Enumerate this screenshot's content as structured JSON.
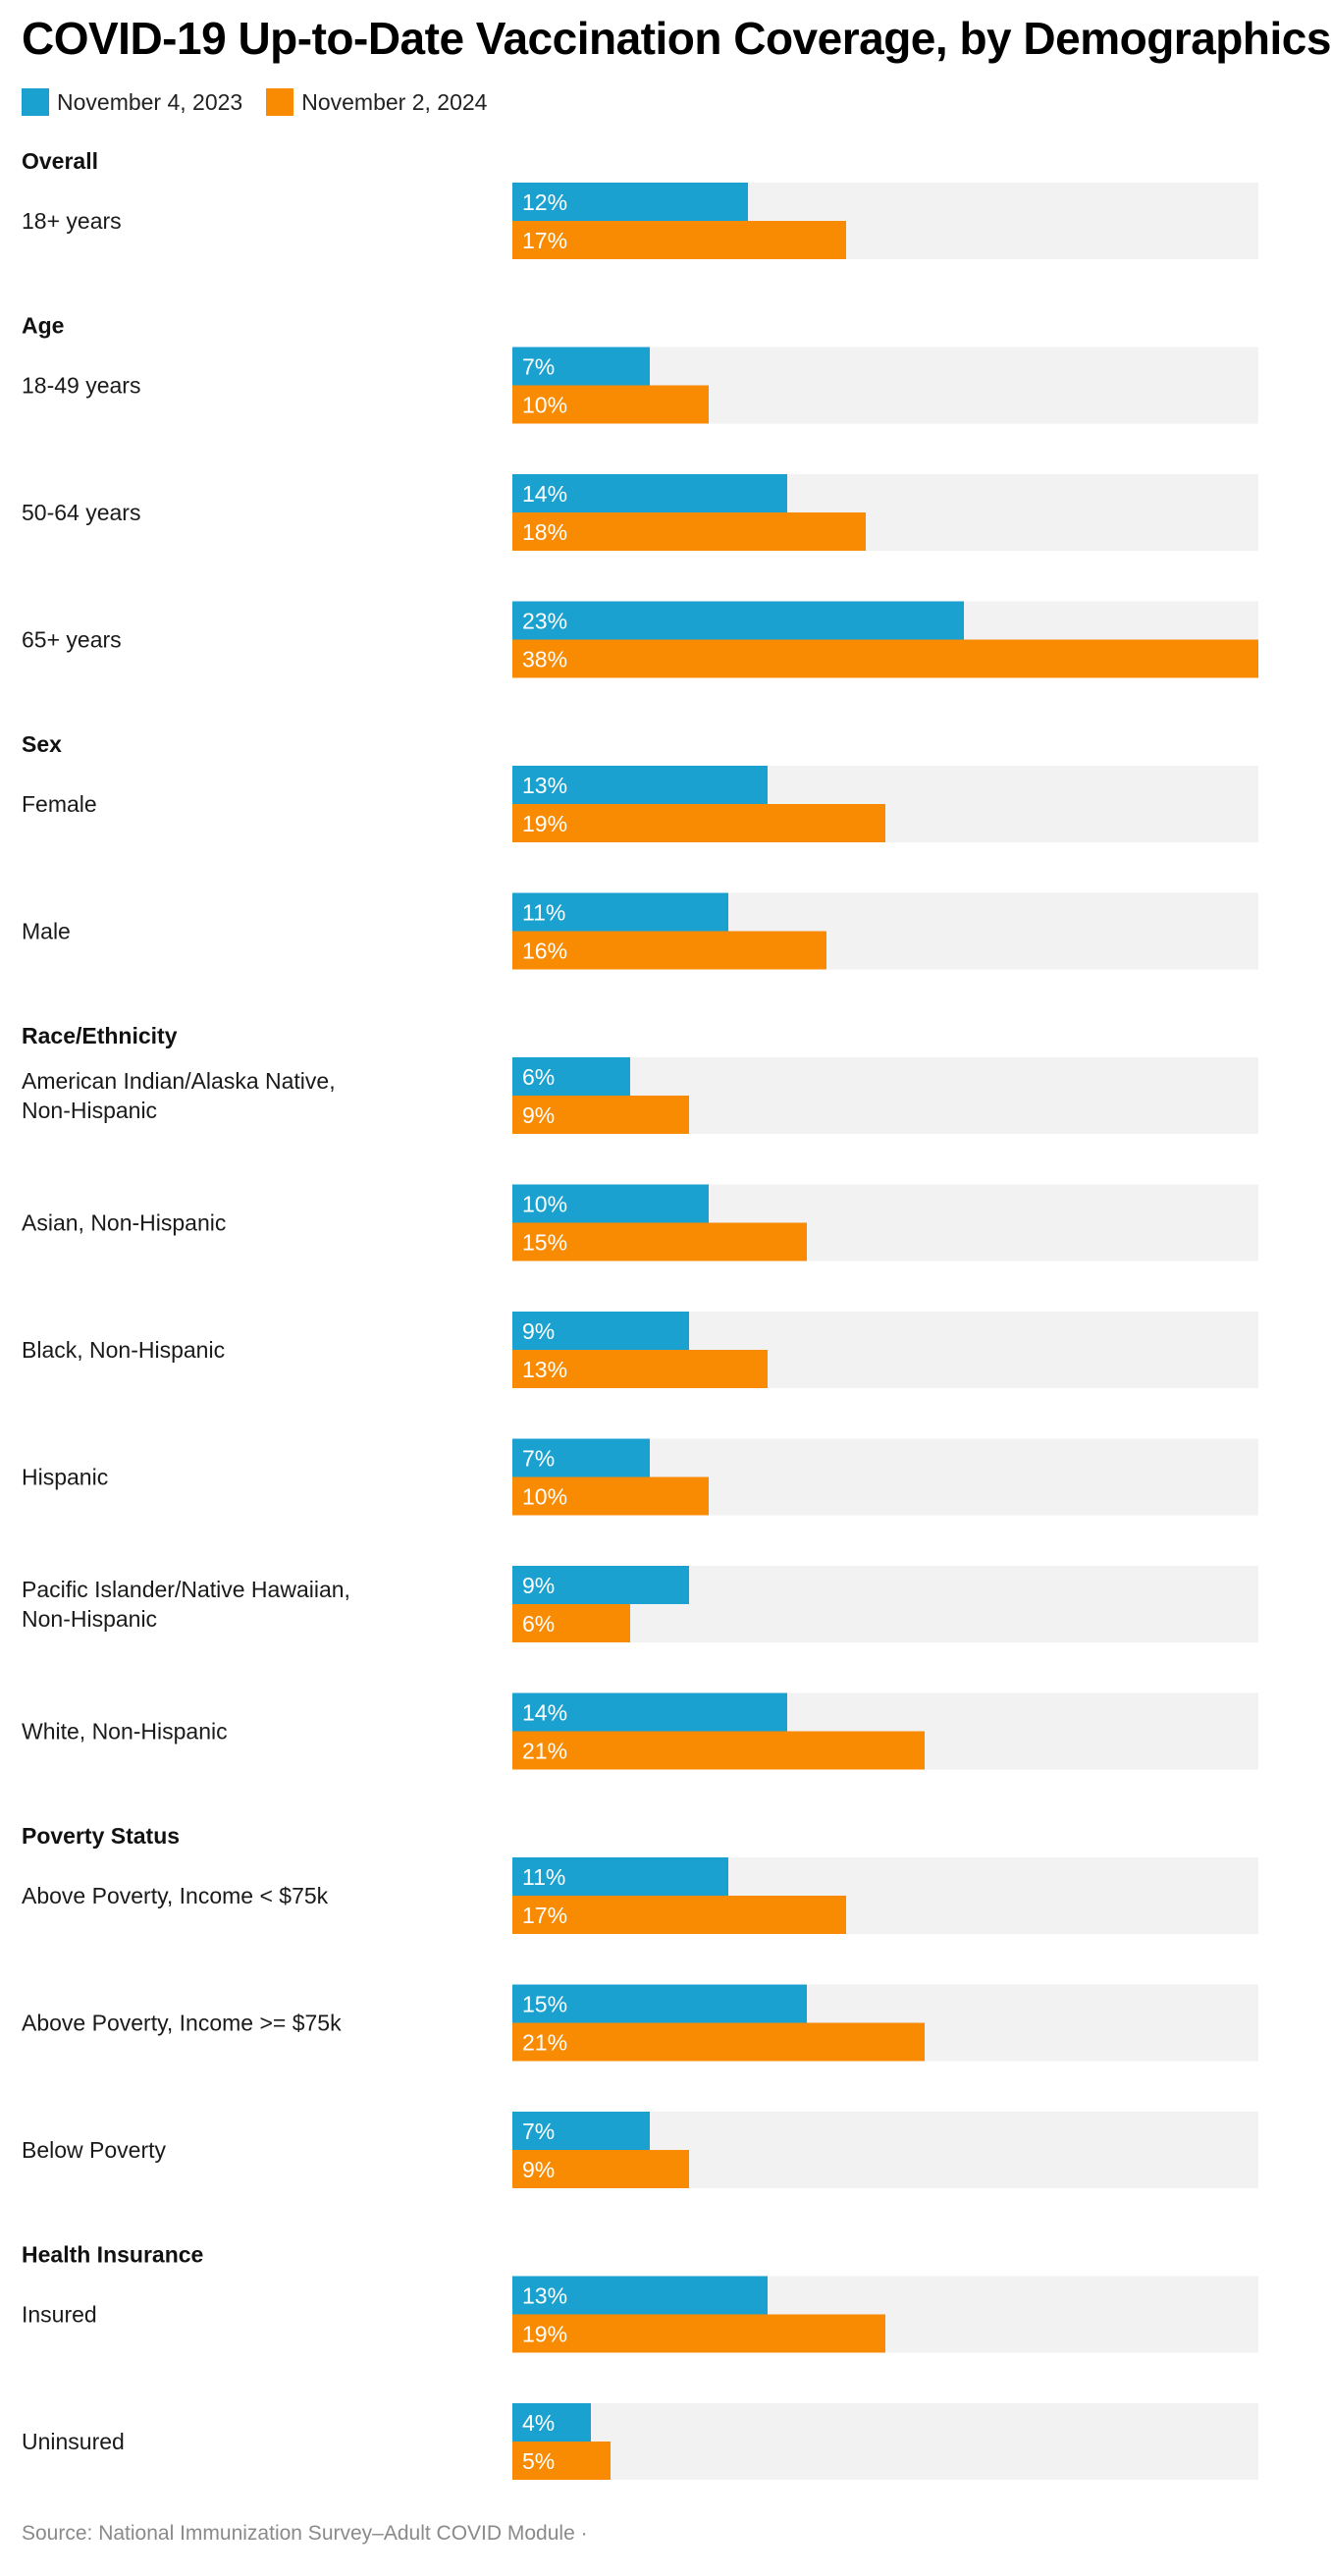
{
  "title": "COVID-19 Up-to-Date Vaccination Coverage, by Demographics",
  "source": "Source: National Immunization Survey–Adult COVID Module ·",
  "colors": {
    "series_2023": "#1ba1cf",
    "series_2024": "#f98b03",
    "track": "#f2f2f2",
    "bar_label": "#ffffff"
  },
  "chart_data": {
    "type": "bar",
    "orientation": "horizontal",
    "xlim": [
      0,
      38
    ],
    "grid": false,
    "legend_position": "top-left",
    "series": [
      {
        "name": "November 4, 2023",
        "color": "#1ba1cf"
      },
      {
        "name": "November 2, 2024",
        "color": "#f98b03"
      }
    ],
    "groups": [
      {
        "name": "Overall",
        "rows": [
          {
            "label": "18+ years",
            "values": [
              12,
              17
            ]
          }
        ]
      },
      {
        "name": "Age",
        "rows": [
          {
            "label": "18-49 years",
            "values": [
              7,
              10
            ]
          },
          {
            "label": "50-64 years",
            "values": [
              14,
              18
            ]
          },
          {
            "label": "65+ years",
            "values": [
              23,
              38
            ]
          }
        ]
      },
      {
        "name": "Sex",
        "rows": [
          {
            "label": "Female",
            "values": [
              13,
              19
            ]
          },
          {
            "label": "Male",
            "values": [
              11,
              16
            ]
          }
        ]
      },
      {
        "name": "Race/Ethnicity",
        "rows": [
          {
            "label": "American Indian/Alaska Native, Non-Hispanic",
            "values": [
              6,
              9
            ]
          },
          {
            "label": "Asian, Non-Hispanic",
            "values": [
              10,
              15
            ]
          },
          {
            "label": "Black, Non-Hispanic",
            "values": [
              9,
              13
            ]
          },
          {
            "label": "Hispanic",
            "values": [
              7,
              10
            ]
          },
          {
            "label": "Pacific Islander/Native Hawaiian, Non-Hispanic",
            "values": [
              9,
              6
            ]
          },
          {
            "label": "White, Non-Hispanic",
            "values": [
              14,
              21
            ]
          }
        ]
      },
      {
        "name": "Poverty Status",
        "rows": [
          {
            "label": "Above Poverty, Income < $75k",
            "values": [
              11,
              17
            ]
          },
          {
            "label": "Above Poverty, Income >= $75k",
            "values": [
              15,
              21
            ]
          },
          {
            "label": "Below Poverty",
            "values": [
              7,
              9
            ]
          }
        ]
      },
      {
        "name": "Health Insurance",
        "rows": [
          {
            "label": "Insured",
            "values": [
              13,
              19
            ]
          },
          {
            "label": "Uninsured",
            "values": [
              4,
              5
            ]
          }
        ]
      }
    ]
  }
}
